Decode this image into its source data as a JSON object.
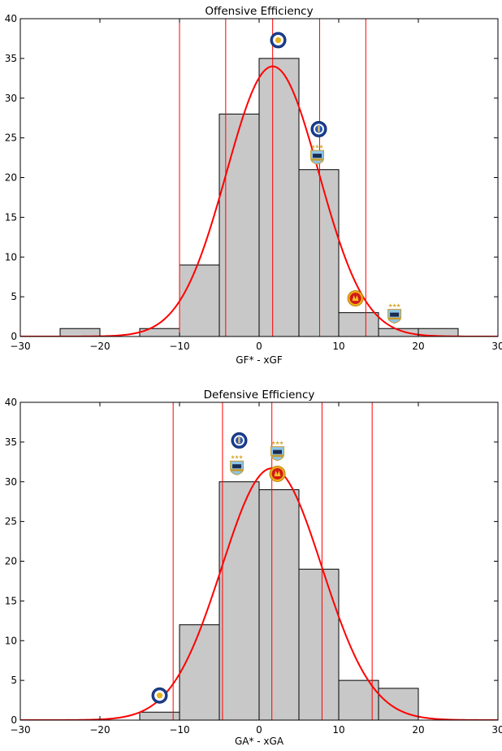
{
  "chart_data": [
    {
      "type": "bar",
      "title": "Offensive Efficiency",
      "xlabel": "GF* - xGF",
      "ylabel": "",
      "xlim": [
        -30,
        30
      ],
      "ylim": [
        0,
        40
      ],
      "xticks": [
        -30,
        -20,
        -10,
        0,
        10,
        20,
        30
      ],
      "yticks": [
        0,
        5,
        10,
        15,
        20,
        25,
        30,
        35,
        40
      ],
      "x_tick_labels": [
        "−30",
        "−20",
        "−10",
        "0",
        "10",
        "20",
        "30"
      ],
      "y_tick_labels": [
        "0",
        "5",
        "10",
        "15",
        "20",
        "25",
        "30",
        "35",
        "40"
      ],
      "bar_color": "#c8c8c8",
      "bar_edge_color": "#000000",
      "bins": [
        {
          "x0": -25,
          "x1": -20,
          "count": 1
        },
        {
          "x0": -15,
          "x1": -10,
          "count": 1
        },
        {
          "x0": -10,
          "x1": -5,
          "count": 9
        },
        {
          "x0": -5,
          "x1": 0,
          "count": 28
        },
        {
          "x0": 0,
          "x1": 5,
          "count": 35
        },
        {
          "x0": 5,
          "x1": 10,
          "count": 21
        },
        {
          "x0": 10,
          "x1": 15,
          "count": 3
        },
        {
          "x0": 15,
          "x1": 20,
          "count": 1
        },
        {
          "x0": 20,
          "x1": 25,
          "count": 1
        }
      ],
      "fit_curve": {
        "type": "normal",
        "mean": 1.7,
        "sd": 5.8,
        "peak": 34,
        "color": "#ff0000"
      },
      "vertical_lines": {
        "x": [
          -10.0,
          -4.2,
          1.7,
          7.6,
          13.4
        ],
        "color": "#ff0000"
      },
      "team_markers": [
        {
          "team": "Leicester",
          "x": 2.4,
          "y": 37.3,
          "icon": "leicester-badge-icon"
        },
        {
          "team": "Chelsea",
          "x": 7.5,
          "y": 26.1,
          "icon": "chelsea-badge-icon"
        },
        {
          "team": "Manchester City",
          "x": 7.3,
          "y": 22.8,
          "icon": "manchester-city-badge-icon"
        },
        {
          "team": "Manchester United",
          "x": 12.1,
          "y": 4.8,
          "icon": "manchester-united-badge-icon"
        },
        {
          "team": "Manchester City",
          "x": 17.0,
          "y": 2.8,
          "icon": "manchester-city-badge-icon"
        }
      ]
    },
    {
      "type": "bar",
      "title": "Defensive Efficiency",
      "xlabel": "GA* - xGA",
      "ylabel": "",
      "xlim": [
        -30,
        30
      ],
      "ylim": [
        0,
        40
      ],
      "xticks": [
        -30,
        -20,
        -10,
        0,
        10,
        20,
        30
      ],
      "yticks": [
        0,
        5,
        10,
        15,
        20,
        25,
        30,
        35,
        40
      ],
      "x_tick_labels": [
        "−30",
        "−20",
        "−10",
        "0",
        "10",
        "20",
        "30"
      ],
      "y_tick_labels": [
        "0",
        "5",
        "10",
        "15",
        "20",
        "25",
        "30",
        "35",
        "40"
      ],
      "bar_color": "#c8c8c8",
      "bar_edge_color": "#000000",
      "bins": [
        {
          "x0": -15,
          "x1": -10,
          "count": 1
        },
        {
          "x0": -10,
          "x1": -5,
          "count": 12
        },
        {
          "x0": -5,
          "x1": 0,
          "count": 30
        },
        {
          "x0": 0,
          "x1": 5,
          "count": 29
        },
        {
          "x0": 5,
          "x1": 10,
          "count": 19
        },
        {
          "x0": 10,
          "x1": 15,
          "count": 5
        },
        {
          "x0": 15,
          "x1": 20,
          "count": 4
        }
      ],
      "fit_curve": {
        "type": "normal",
        "mean": 1.6,
        "sd": 6.3,
        "peak": 31.7,
        "color": "#ff0000"
      },
      "vertical_lines": {
        "x": [
          -10.8,
          -4.6,
          1.6,
          7.9,
          14.2
        ],
        "color": "#ff0000"
      },
      "team_markers": [
        {
          "team": "Chelsea",
          "x": -2.5,
          "y": 35.2,
          "icon": "chelsea-badge-icon"
        },
        {
          "team": "Manchester City",
          "x": -2.8,
          "y": 32.0,
          "icon": "manchester-city-badge-icon"
        },
        {
          "team": "Manchester City",
          "x": 2.3,
          "y": 33.8,
          "icon": "manchester-city-badge-icon"
        },
        {
          "team": "Manchester United",
          "x": 2.3,
          "y": 31.0,
          "icon": "manchester-united-badge-icon"
        },
        {
          "team": "Leicester",
          "x": -12.5,
          "y": 3.1,
          "icon": "leicester-badge-icon"
        }
      ]
    }
  ]
}
